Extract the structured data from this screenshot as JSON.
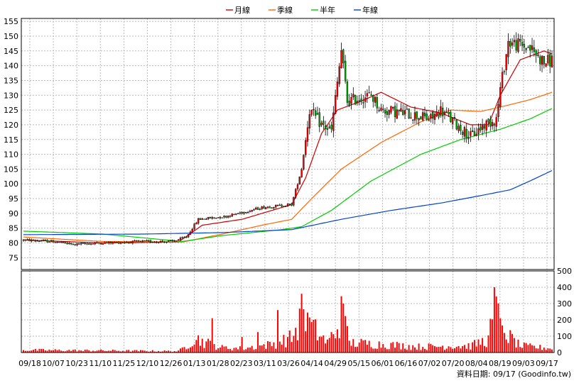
{
  "legend": [
    {
      "label": "月線",
      "color": "#cc0000"
    },
    {
      "label": "季線",
      "color": "#ff6600"
    },
    {
      "label": "半年",
      "color": "#00cc00"
    },
    {
      "label": "年線",
      "color": "#0044cc"
    }
  ],
  "footer_text": "資料日期: 09/17  (Goodinfo.tw)",
  "chart_data": {
    "type": "candlestick",
    "price_axis": {
      "ticks": [
        75,
        80,
        85,
        90,
        95,
        100,
        105,
        110,
        115,
        120,
        125,
        130,
        135,
        140,
        145,
        150,
        155
      ],
      "ylim": [
        71,
        156
      ]
    },
    "volume_axis": {
      "ticks": [
        0,
        100,
        200,
        300,
        400,
        500
      ],
      "ylim": [
        0,
        500
      ]
    },
    "x_tick_labels": [
      "09/18",
      "10/07",
      "10/23",
      "11/10",
      "11/25",
      "12/10",
      "12/26",
      "01/13",
      "01/28",
      "02/23",
      "03/11",
      "03/26",
      "04/14",
      "04/29",
      "05/15",
      "06/01",
      "06/16",
      "07/02",
      "07/20",
      "08/04",
      "08/19",
      "09/03",
      "09/17"
    ],
    "colors": {
      "up": "#ff0000",
      "down": "#00aa00",
      "volume": "#ff0000"
    },
    "price_anchors": [
      [
        0,
        81
      ],
      [
        15,
        80.5
      ],
      [
        25,
        79.5
      ],
      [
        40,
        80
      ],
      [
        60,
        80.5
      ],
      [
        75,
        80.5
      ],
      [
        82,
        82
      ],
      [
        88,
        88
      ],
      [
        102,
        89
      ],
      [
        120,
        92
      ],
      [
        135,
        93
      ],
      [
        140,
        105
      ],
      [
        144,
        125
      ],
      [
        150,
        120
      ],
      [
        155,
        118
      ],
      [
        160,
        145
      ],
      [
        163,
        128
      ],
      [
        175,
        130
      ],
      [
        180,
        125
      ],
      [
        192,
        124
      ],
      [
        205,
        122
      ],
      [
        210,
        125
      ],
      [
        218,
        120
      ],
      [
        225,
        116
      ],
      [
        232,
        120
      ],
      [
        238,
        122
      ],
      [
        240,
        132
      ],
      [
        244,
        148
      ],
      [
        255,
        146
      ],
      [
        262,
        141
      ],
      [
        266,
        142
      ]
    ],
    "volume_anchors": [
      [
        0,
        15
      ],
      [
        40,
        12
      ],
      [
        78,
        8
      ],
      [
        82,
        40
      ],
      [
        86,
        90
      ],
      [
        92,
        60
      ],
      [
        100,
        30
      ],
      [
        110,
        25
      ],
      [
        125,
        50
      ],
      [
        135,
        90
      ],
      [
        140,
        200
      ],
      [
        144,
        170
      ],
      [
        148,
        120
      ],
      [
        153,
        60
      ],
      [
        158,
        150
      ],
      [
        160,
        250
      ],
      [
        164,
        60
      ],
      [
        180,
        50
      ],
      [
        200,
        35
      ],
      [
        215,
        40
      ],
      [
        225,
        40
      ],
      [
        234,
        80
      ],
      [
        237,
        250
      ],
      [
        241,
        180
      ],
      [
        244,
        100
      ],
      [
        250,
        40
      ],
      [
        266,
        25
      ]
    ],
    "volume_spikes": [
      [
        30,
        8
      ],
      [
        95,
        210
      ],
      [
        110,
        95
      ],
      [
        118,
        125
      ],
      [
        128,
        260
      ],
      [
        140,
        360
      ],
      [
        141,
        265
      ],
      [
        143,
        245
      ],
      [
        160,
        345
      ],
      [
        161,
        300
      ],
      [
        237,
        400
      ],
      [
        240,
        210
      ],
      [
        242,
        120
      ]
    ],
    "ma_lines": [
      {
        "series": "月線",
        "color": "#cc0000",
        "points": [
          [
            0,
            81
          ],
          [
            40,
            80
          ],
          [
            78,
            80.3
          ],
          [
            90,
            86
          ],
          [
            110,
            88
          ],
          [
            135,
            93
          ],
          [
            142,
            102
          ],
          [
            150,
            117
          ],
          [
            158,
            125
          ],
          [
            170,
            128
          ],
          [
            180,
            131
          ],
          [
            195,
            126
          ],
          [
            210,
            124
          ],
          [
            225,
            120
          ],
          [
            234,
            120
          ],
          [
            240,
            130
          ],
          [
            250,
            142
          ],
          [
            262,
            145
          ],
          [
            266,
            144
          ]
        ]
      },
      {
        "series": "季線",
        "color": "#ff6600",
        "points": [
          [
            0,
            82
          ],
          [
            40,
            80.5
          ],
          [
            80,
            80.3
          ],
          [
            100,
            83
          ],
          [
            120,
            86
          ],
          [
            135,
            88
          ],
          [
            145,
            95
          ],
          [
            160,
            105
          ],
          [
            180,
            114
          ],
          [
            200,
            121
          ],
          [
            215,
            125
          ],
          [
            230,
            124.5
          ],
          [
            240,
            126
          ],
          [
            255,
            128.5
          ],
          [
            266,
            131
          ]
        ]
      },
      {
        "series": "半年",
        "color": "#00cc00",
        "points": [
          [
            0,
            84
          ],
          [
            40,
            83
          ],
          [
            80,
            80.5
          ],
          [
            100,
            82.5
          ],
          [
            130,
            84.5
          ],
          [
            140,
            85.5
          ],
          [
            155,
            91
          ],
          [
            175,
            101
          ],
          [
            200,
            110
          ],
          [
            220,
            115
          ],
          [
            240,
            118.5
          ],
          [
            255,
            122
          ],
          [
            266,
            125.5
          ]
        ]
      },
      {
        "series": "年線",
        "color": "#0044cc",
        "points": [
          [
            0,
            82.8
          ],
          [
            60,
            83
          ],
          [
            100,
            83.5
          ],
          [
            135,
            84.5
          ],
          [
            160,
            88
          ],
          [
            185,
            91
          ],
          [
            210,
            93.5
          ],
          [
            230,
            96
          ],
          [
            245,
            98
          ],
          [
            255,
            101
          ],
          [
            266,
            104.5
          ]
        ]
      }
    ]
  }
}
